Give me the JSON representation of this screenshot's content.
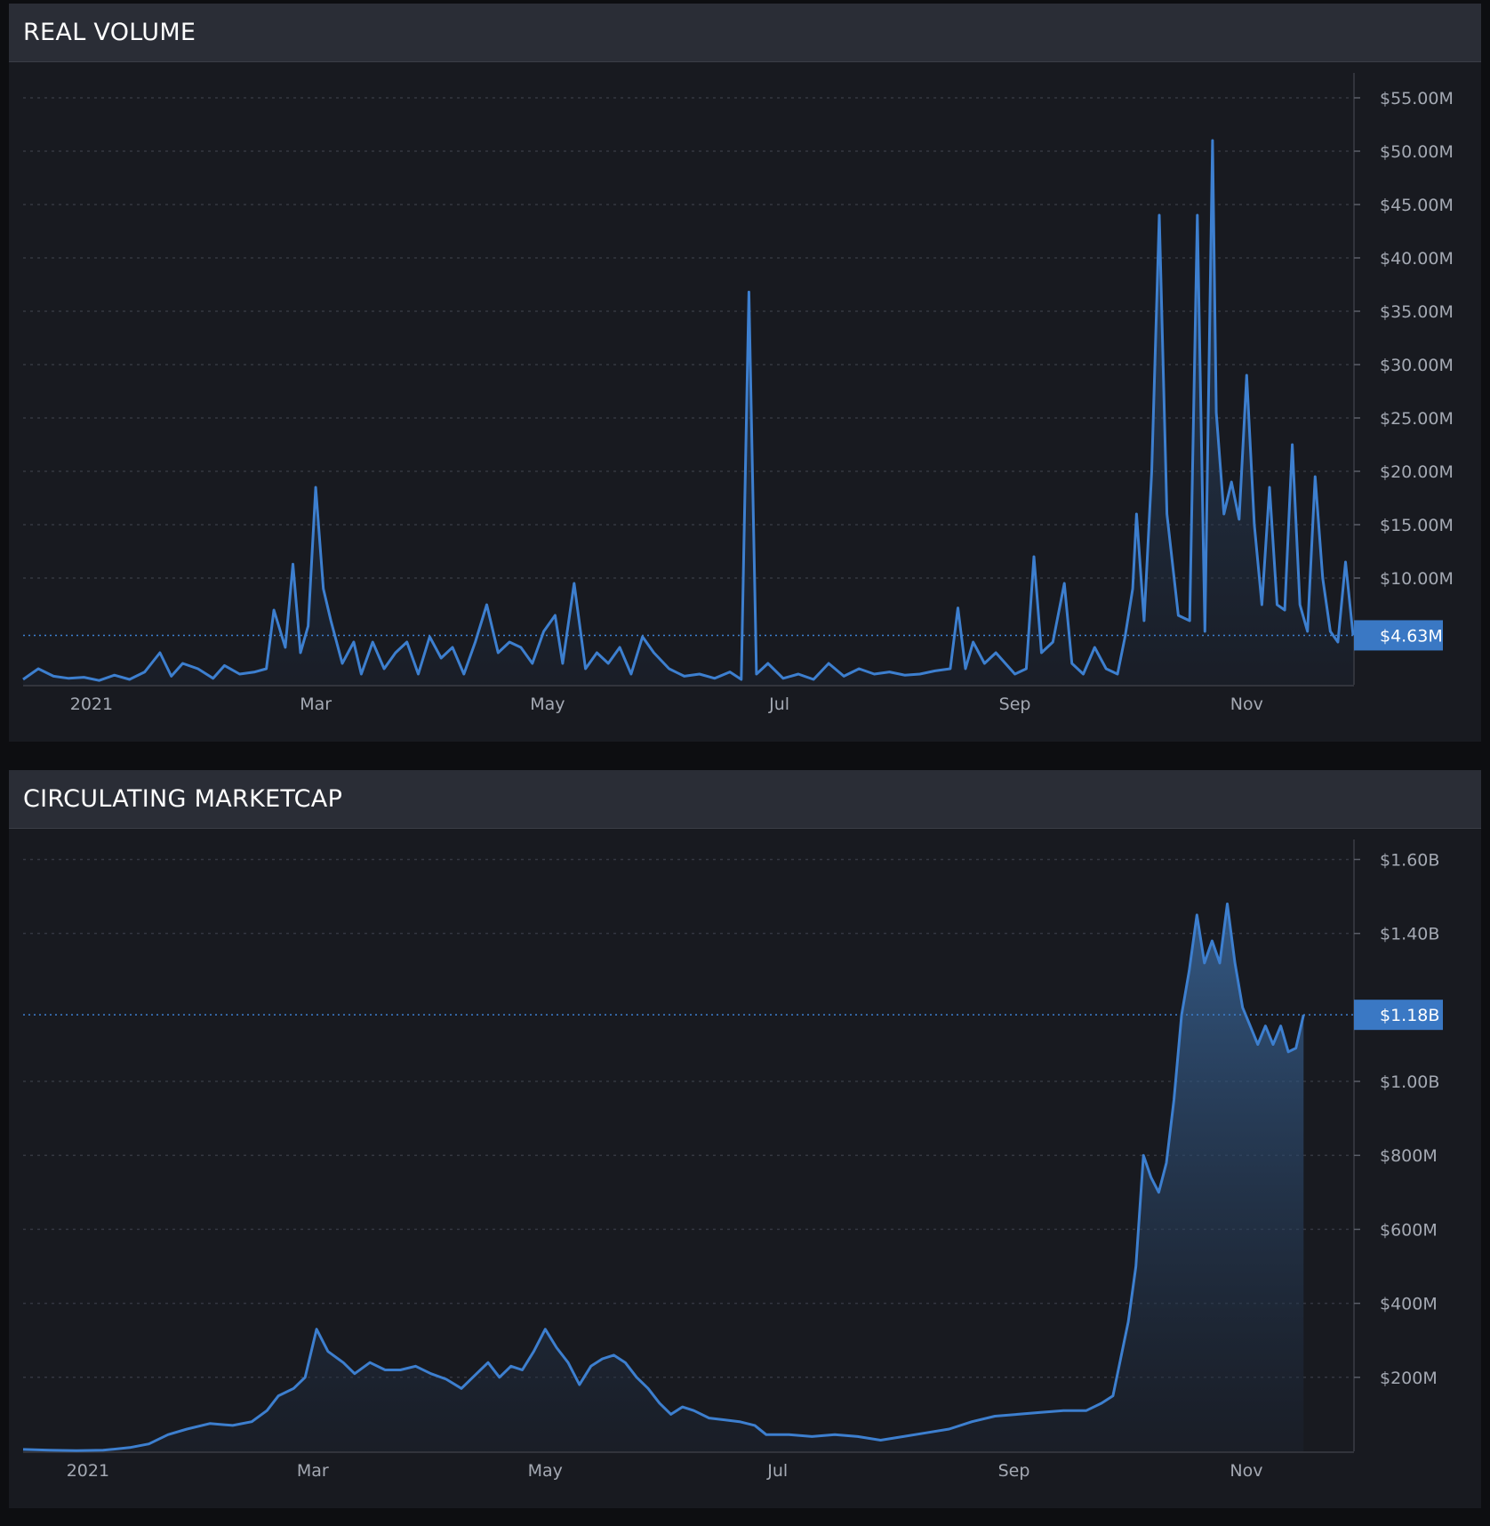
{
  "colors": {
    "background": "#0d0e11",
    "panel": "#181a20",
    "header": "#2a2d36",
    "line": "#3d7fcf",
    "label_bg": "#3a78c4",
    "axis_text": "#a4a9b3",
    "grid": "#343741"
  },
  "panels": [
    {
      "title": "REAL VOLUME"
    },
    {
      "title": "CIRCULATING MARKETCAP"
    }
  ],
  "chart_data": [
    {
      "type": "area",
      "title": "REAL VOLUME",
      "x_range": [
        "2020-12-14",
        "2021-11-29"
      ],
      "x_ticks": [
        {
          "date": "2021-01-01",
          "label": "2021"
        },
        {
          "date": "2021-03-01",
          "label": "Mar"
        },
        {
          "date": "2021-05-01",
          "label": "May"
        },
        {
          "date": "2021-07-01",
          "label": "Jul"
        },
        {
          "date": "2021-09-01",
          "label": "Sep"
        },
        {
          "date": "2021-11-01",
          "label": "Nov"
        }
      ],
      "ylim": [
        0,
        56500000
      ],
      "y_ticks": [
        {
          "value": 10000000,
          "label": "$10.00M"
        },
        {
          "value": 15000000,
          "label": "$15.00M"
        },
        {
          "value": 20000000,
          "label": "$20.00M"
        },
        {
          "value": 25000000,
          "label": "$25.00M"
        },
        {
          "value": 30000000,
          "label": "$30.00M"
        },
        {
          "value": 35000000,
          "label": "$35.00M"
        },
        {
          "value": 40000000,
          "label": "$40.00M"
        },
        {
          "value": 45000000,
          "label": "$45.00M"
        },
        {
          "value": 50000000,
          "label": "$50.00M"
        },
        {
          "value": 55000000,
          "label": "$55.00M"
        }
      ],
      "current": {
        "value": 4630000,
        "label": "$4.63M"
      },
      "points": [
        [
          "2020-12-14",
          0.5
        ],
        [
          "2020-12-18",
          1.5
        ],
        [
          "2020-12-22",
          0.8
        ],
        [
          "2020-12-26",
          0.6
        ],
        [
          "2020-12-30",
          0.7
        ],
        [
          "2021-01-03",
          0.4
        ],
        [
          "2021-01-07",
          0.9
        ],
        [
          "2021-01-11",
          0.5
        ],
        [
          "2021-01-15",
          1.2
        ],
        [
          "2021-01-19",
          3.0
        ],
        [
          "2021-01-22",
          0.8
        ],
        [
          "2021-01-25",
          2.0
        ],
        [
          "2021-01-29",
          1.5
        ],
        [
          "2021-02-02",
          0.6
        ],
        [
          "2021-02-05",
          1.8
        ],
        [
          "2021-02-09",
          1.0
        ],
        [
          "2021-02-13",
          1.2
        ],
        [
          "2021-02-16",
          1.5
        ],
        [
          "2021-02-18",
          7.0
        ],
        [
          "2021-02-21",
          3.5
        ],
        [
          "2021-02-23",
          11.3
        ],
        [
          "2021-02-25",
          3.0
        ],
        [
          "2021-02-27",
          5.5
        ],
        [
          "2021-03-01",
          18.5
        ],
        [
          "2021-03-03",
          9.0
        ],
        [
          "2021-03-05",
          6.0
        ],
        [
          "2021-03-08",
          2.0
        ],
        [
          "2021-03-11",
          4.0
        ],
        [
          "2021-03-13",
          1.0
        ],
        [
          "2021-03-16",
          4.0
        ],
        [
          "2021-03-19",
          1.5
        ],
        [
          "2021-03-22",
          3.0
        ],
        [
          "2021-03-25",
          4.0
        ],
        [
          "2021-03-28",
          1.0
        ],
        [
          "2021-03-31",
          4.5
        ],
        [
          "2021-04-03",
          2.5
        ],
        [
          "2021-04-06",
          3.5
        ],
        [
          "2021-04-09",
          1.0
        ],
        [
          "2021-04-12",
          4.0
        ],
        [
          "2021-04-15",
          7.5
        ],
        [
          "2021-04-18",
          3.0
        ],
        [
          "2021-04-21",
          4.0
        ],
        [
          "2021-04-24",
          3.5
        ],
        [
          "2021-04-27",
          2.0
        ],
        [
          "2021-04-30",
          5.0
        ],
        [
          "2021-05-03",
          6.5
        ],
        [
          "2021-05-05",
          2.0
        ],
        [
          "2021-05-08",
          9.5
        ],
        [
          "2021-05-11",
          1.5
        ],
        [
          "2021-05-14",
          3.0
        ],
        [
          "2021-05-17",
          2.0
        ],
        [
          "2021-05-20",
          3.5
        ],
        [
          "2021-05-23",
          1.0
        ],
        [
          "2021-05-26",
          4.5
        ],
        [
          "2021-05-29",
          3.0
        ],
        [
          "2021-06-02",
          1.5
        ],
        [
          "2021-06-06",
          0.8
        ],
        [
          "2021-06-10",
          1.0
        ],
        [
          "2021-06-14",
          0.6
        ],
        [
          "2021-06-18",
          1.2
        ],
        [
          "2021-06-21",
          0.5
        ],
        [
          "2021-06-23",
          36.8
        ],
        [
          "2021-06-25",
          1.0
        ],
        [
          "2021-06-28",
          2.0
        ],
        [
          "2021-07-02",
          0.6
        ],
        [
          "2021-07-06",
          1.0
        ],
        [
          "2021-07-10",
          0.5
        ],
        [
          "2021-07-14",
          2.0
        ],
        [
          "2021-07-18",
          0.8
        ],
        [
          "2021-07-22",
          1.5
        ],
        [
          "2021-07-26",
          1.0
        ],
        [
          "2021-07-30",
          1.2
        ],
        [
          "2021-08-03",
          0.9
        ],
        [
          "2021-08-07",
          1.0
        ],
        [
          "2021-08-11",
          1.3
        ],
        [
          "2021-08-15",
          1.5
        ],
        [
          "2021-08-17",
          7.2
        ],
        [
          "2021-08-19",
          1.5
        ],
        [
          "2021-08-21",
          4.0
        ],
        [
          "2021-08-24",
          2.0
        ],
        [
          "2021-08-27",
          3.0
        ],
        [
          "2021-08-30",
          1.8
        ],
        [
          "2021-09-01",
          1.0
        ],
        [
          "2021-09-04",
          1.5
        ],
        [
          "2021-09-06",
          12.0
        ],
        [
          "2021-09-08",
          3.0
        ],
        [
          "2021-09-11",
          4.0
        ],
        [
          "2021-09-14",
          9.5
        ],
        [
          "2021-09-16",
          2.0
        ],
        [
          "2021-09-19",
          1.0
        ],
        [
          "2021-09-22",
          3.5
        ],
        [
          "2021-09-25",
          1.5
        ],
        [
          "2021-09-28",
          1.0
        ],
        [
          "2021-09-30",
          4.5
        ],
        [
          "2021-10-02",
          9.0
        ],
        [
          "2021-10-03",
          16.0
        ],
        [
          "2021-10-05",
          6.0
        ],
        [
          "2021-10-07",
          20.0
        ],
        [
          "2021-10-09",
          44.0
        ],
        [
          "2021-10-11",
          16.0
        ],
        [
          "2021-10-14",
          6.5
        ],
        [
          "2021-10-17",
          6.0
        ],
        [
          "2021-10-19",
          44.0
        ],
        [
          "2021-10-21",
          5.0
        ],
        [
          "2021-10-23",
          51.0
        ],
        [
          "2021-10-24",
          25.5
        ],
        [
          "2021-10-26",
          16.0
        ],
        [
          "2021-10-28",
          19.0
        ],
        [
          "2021-10-30",
          15.5
        ],
        [
          "2021-11-01",
          29.0
        ],
        [
          "2021-11-03",
          15.0
        ],
        [
          "2021-11-05",
          7.5
        ],
        [
          "2021-11-07",
          18.5
        ],
        [
          "2021-11-09",
          7.5
        ],
        [
          "2021-11-11",
          7.0
        ],
        [
          "2021-11-13",
          22.5
        ],
        [
          "2021-11-15",
          7.5
        ],
        [
          "2021-11-17",
          5.0
        ],
        [
          "2021-11-19",
          19.5
        ],
        [
          "2021-11-21",
          10.0
        ],
        [
          "2021-11-23",
          5.0
        ],
        [
          "2021-11-25",
          4.0
        ],
        [
          "2021-11-27",
          11.5
        ],
        [
          "2021-11-29",
          4.63
        ]
      ]
    },
    {
      "type": "area",
      "title": "CIRCULATING MARKETCAP",
      "x_range": [
        "2020-12-15",
        "2021-11-29"
      ],
      "x_ticks": [
        {
          "date": "2021-01-01",
          "label": "2021"
        },
        {
          "date": "2021-03-01",
          "label": "Mar"
        },
        {
          "date": "2021-05-01",
          "label": "May"
        },
        {
          "date": "2021-07-01",
          "label": "Jul"
        },
        {
          "date": "2021-09-01",
          "label": "Sep"
        },
        {
          "date": "2021-11-01",
          "label": "Nov"
        }
      ],
      "ylim": [
        0,
        1630000000
      ],
      "y_ticks": [
        {
          "value": 200000000,
          "label": "$200M"
        },
        {
          "value": 400000000,
          "label": "$400M"
        },
        {
          "value": 600000000,
          "label": "$600M"
        },
        {
          "value": 800000000,
          "label": "$800M"
        },
        {
          "value": 1000000000,
          "label": "$1.00B"
        },
        {
          "value": 1400000000,
          "label": "$1.40B"
        },
        {
          "value": 1600000000,
          "label": "$1.60B"
        }
      ],
      "current": {
        "value": 1180000000,
        "label": "$1.18B"
      },
      "points": [
        [
          "2020-12-15",
          5
        ],
        [
          "2020-12-22",
          3
        ],
        [
          "2020-12-29",
          2
        ],
        [
          "2021-01-05",
          3
        ],
        [
          "2021-01-12",
          10
        ],
        [
          "2021-01-17",
          20
        ],
        [
          "2021-01-22",
          45
        ],
        [
          "2021-01-27",
          60
        ],
        [
          "2021-02-02",
          75
        ],
        [
          "2021-02-08",
          70
        ],
        [
          "2021-02-13",
          80
        ],
        [
          "2021-02-17",
          110
        ],
        [
          "2021-02-20",
          150
        ],
        [
          "2021-02-24",
          170
        ],
        [
          "2021-02-27",
          200
        ],
        [
          "2021-03-02",
          330
        ],
        [
          "2021-03-05",
          270
        ],
        [
          "2021-03-09",
          240
        ],
        [
          "2021-03-12",
          210
        ],
        [
          "2021-03-16",
          240
        ],
        [
          "2021-03-20",
          220
        ],
        [
          "2021-03-24",
          220
        ],
        [
          "2021-03-28",
          230
        ],
        [
          "2021-04-01",
          210
        ],
        [
          "2021-04-05",
          195
        ],
        [
          "2021-04-09",
          170
        ],
        [
          "2021-04-13",
          210
        ],
        [
          "2021-04-16",
          240
        ],
        [
          "2021-04-19",
          200
        ],
        [
          "2021-04-22",
          230
        ],
        [
          "2021-04-25",
          220
        ],
        [
          "2021-04-28",
          270
        ],
        [
          "2021-05-01",
          330
        ],
        [
          "2021-05-04",
          280
        ],
        [
          "2021-05-07",
          240
        ],
        [
          "2021-05-10",
          180
        ],
        [
          "2021-05-13",
          230
        ],
        [
          "2021-05-16",
          250
        ],
        [
          "2021-05-19",
          260
        ],
        [
          "2021-05-22",
          240
        ],
        [
          "2021-05-25",
          200
        ],
        [
          "2021-05-28",
          170
        ],
        [
          "2021-05-31",
          130
        ],
        [
          "2021-06-03",
          100
        ],
        [
          "2021-06-06",
          120
        ],
        [
          "2021-06-09",
          110
        ],
        [
          "2021-06-13",
          90
        ],
        [
          "2021-06-17",
          85
        ],
        [
          "2021-06-21",
          80
        ],
        [
          "2021-06-25",
          70
        ],
        [
          "2021-06-28",
          45
        ],
        [
          "2021-07-04",
          45
        ],
        [
          "2021-07-10",
          40
        ],
        [
          "2021-07-16",
          45
        ],
        [
          "2021-07-22",
          40
        ],
        [
          "2021-07-28",
          30
        ],
        [
          "2021-08-03",
          40
        ],
        [
          "2021-08-09",
          50
        ],
        [
          "2021-08-15",
          60
        ],
        [
          "2021-08-21",
          80
        ],
        [
          "2021-08-27",
          95
        ],
        [
          "2021-09-02",
          100
        ],
        [
          "2021-09-08",
          105
        ],
        [
          "2021-09-14",
          110
        ],
        [
          "2021-09-20",
          110
        ],
        [
          "2021-09-24",
          130
        ],
        [
          "2021-09-27",
          150
        ],
        [
          "2021-09-29",
          250
        ],
        [
          "2021-10-01",
          350
        ],
        [
          "2021-10-03",
          500
        ],
        [
          "2021-10-05",
          800
        ],
        [
          "2021-10-07",
          740
        ],
        [
          "2021-10-09",
          700
        ],
        [
          "2021-10-11",
          780
        ],
        [
          "2021-10-13",
          950
        ],
        [
          "2021-10-15",
          1180
        ],
        [
          "2021-10-17",
          1300
        ],
        [
          "2021-10-19",
          1450
        ],
        [
          "2021-10-21",
          1320
        ],
        [
          "2021-10-23",
          1380
        ],
        [
          "2021-10-25",
          1320
        ],
        [
          "2021-10-27",
          1480
        ],
        [
          "2021-10-29",
          1320
        ],
        [
          "2021-10-31",
          1200
        ],
        [
          "2021-11-02",
          1150
        ],
        [
          "2021-11-04",
          1100
        ],
        [
          "2021-11-06",
          1150
        ],
        [
          "2021-11-08",
          1100
        ],
        [
          "2021-11-10",
          1150
        ],
        [
          "2021-11-12",
          1080
        ],
        [
          "2021-11-14",
          1090
        ],
        [
          "2021-11-16",
          1180
        ]
      ]
    }
  ]
}
